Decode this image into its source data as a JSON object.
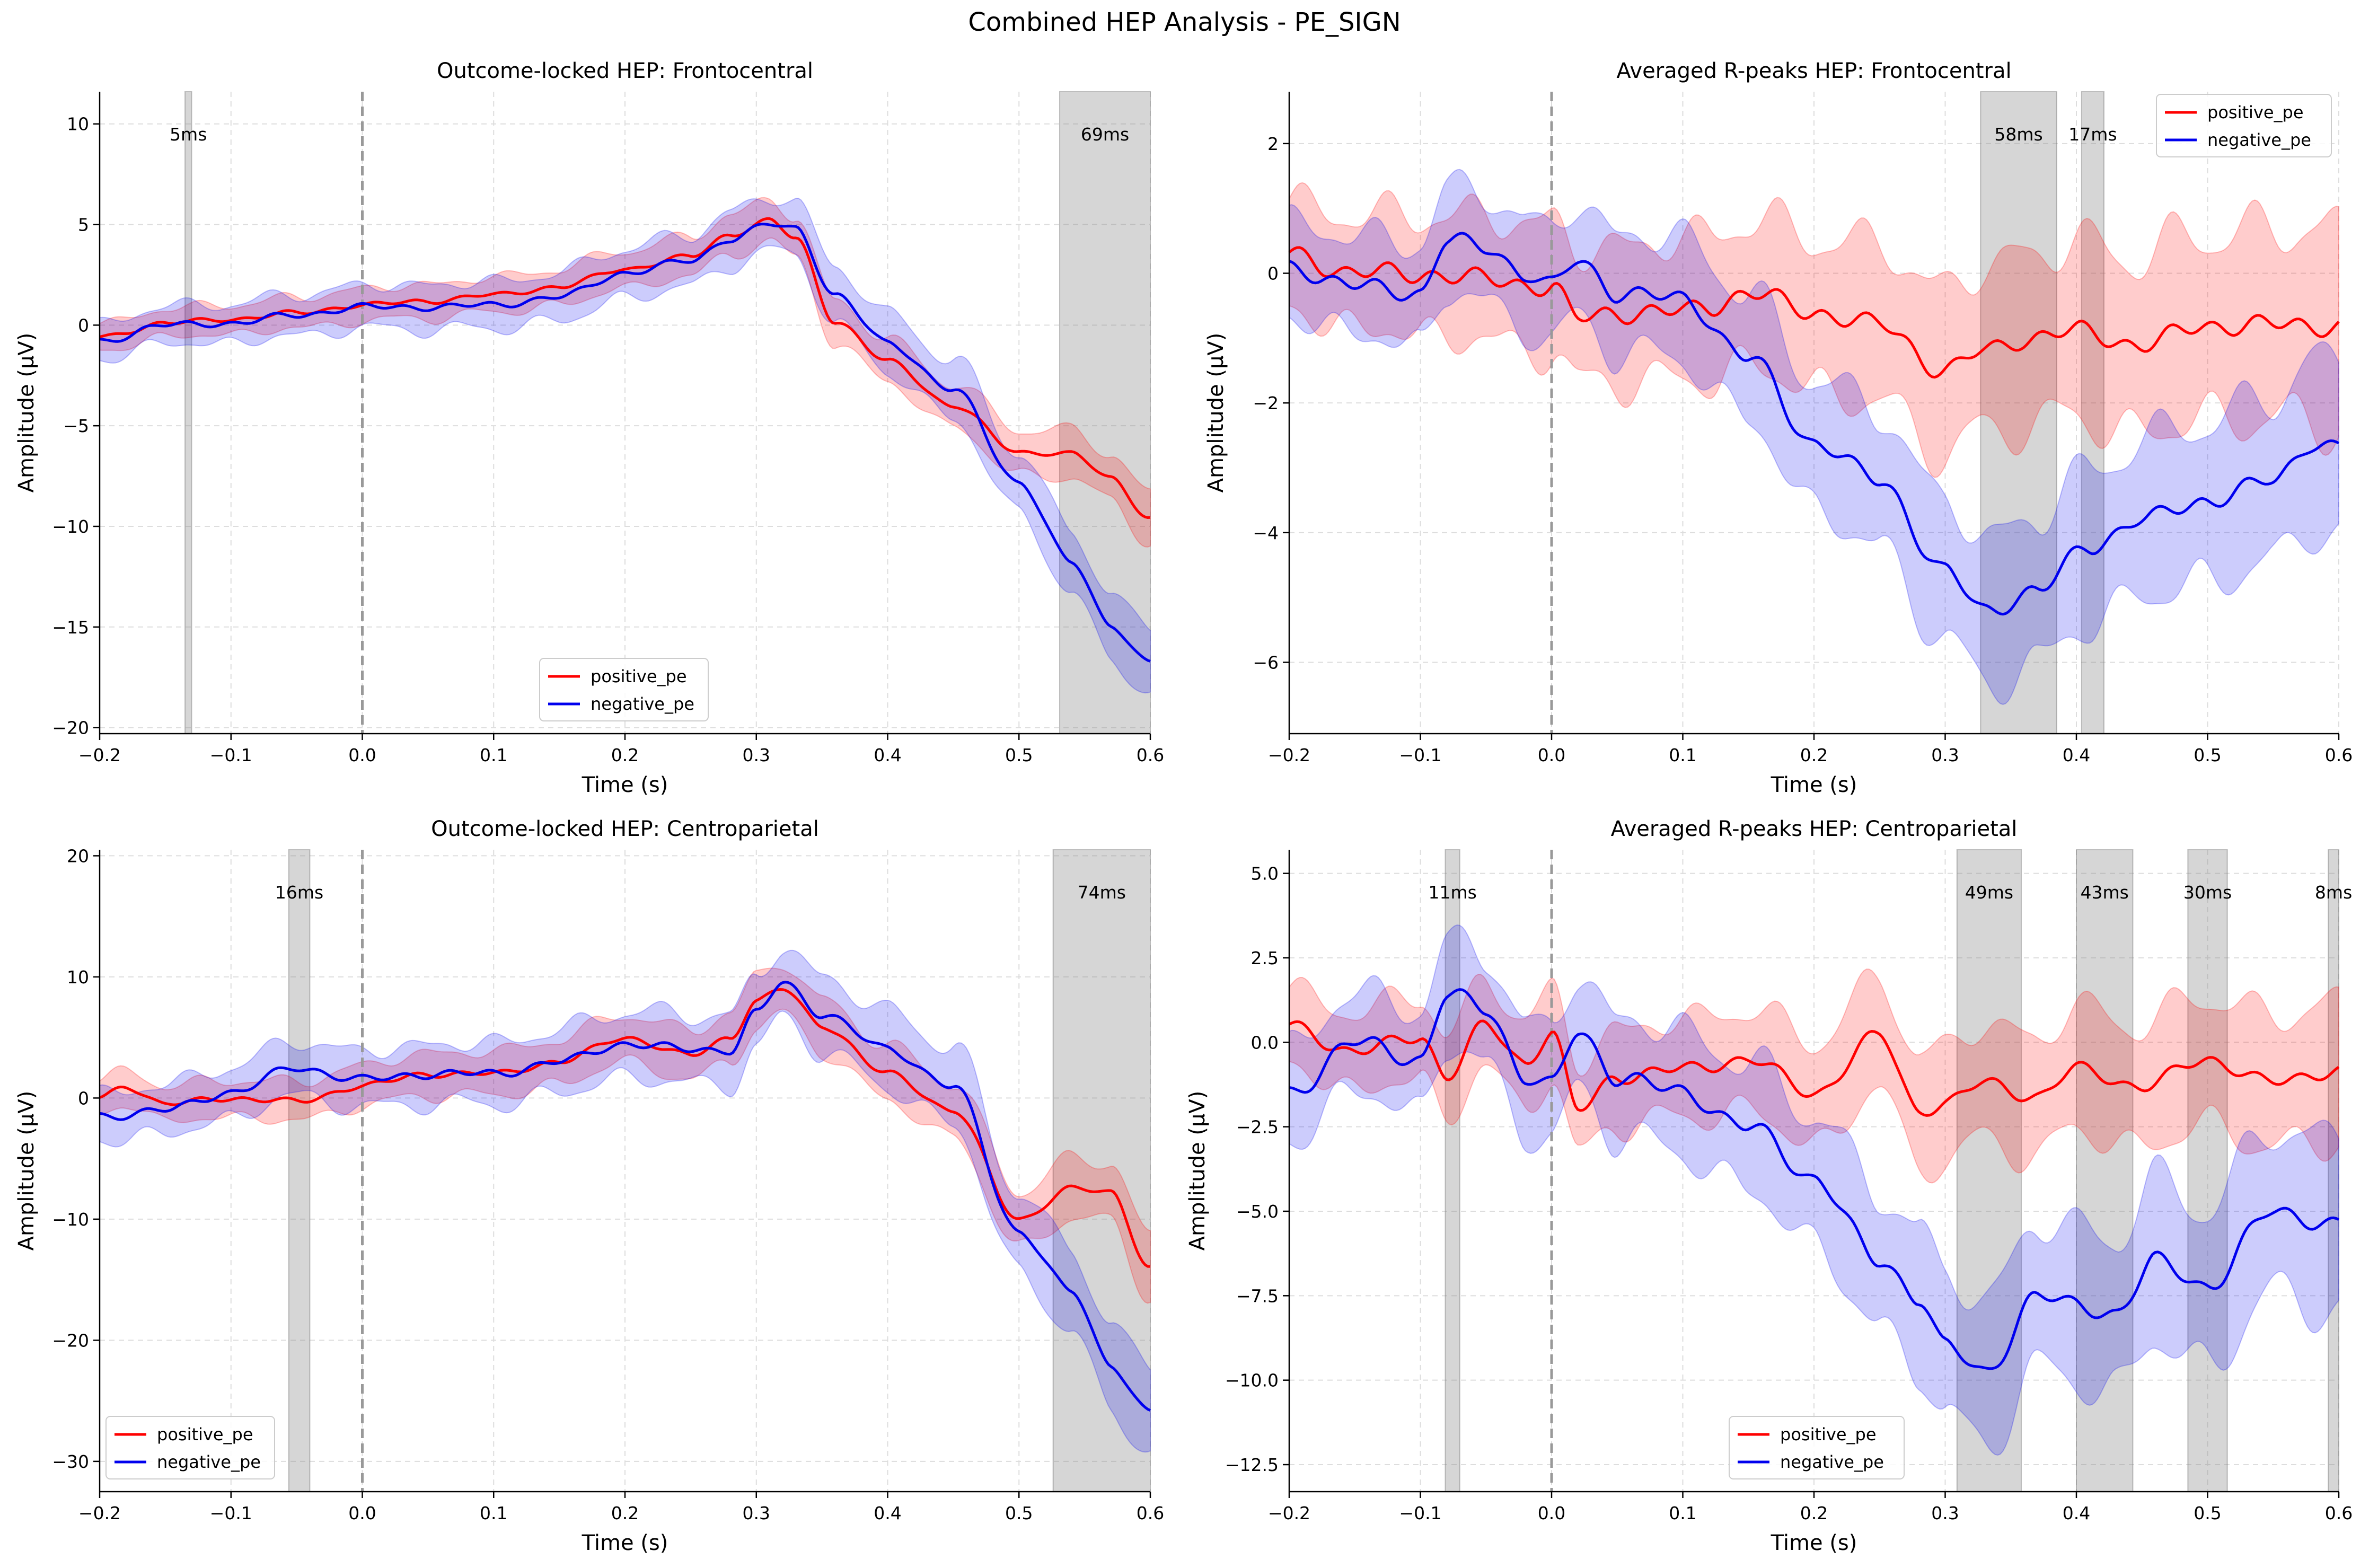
{
  "suptitle": "Combined HEP Analysis - PE_SIGN",
  "colors": {
    "positive": "#ff0000",
    "negative": "#0000ee",
    "sig": "#808080",
    "zero": "#999999"
  },
  "chart_data": [
    {
      "type": "line",
      "title": "Outcome-locked HEP: Frontocentral",
      "xlabel": "Time (s)",
      "ylabel": "Amplitude (μV)",
      "xlim": [
        -0.2,
        0.6
      ],
      "ylim": [
        -20.3,
        11.6
      ],
      "xticks": [
        -0.2,
        -0.1,
        0.0,
        0.1,
        0.2,
        0.3,
        0.4,
        0.5,
        0.6
      ],
      "xtick_labels": [
        "−0.2",
        "−0.1",
        "0.0",
        "0.1",
        "0.2",
        "0.3",
        "0.4",
        "0.5",
        "0.6"
      ],
      "yticks": [
        -20,
        -15,
        -10,
        -5,
        0,
        5,
        10
      ],
      "ytick_labels": [
        "−20",
        "−15",
        "−10",
        "−5",
        "0",
        "5",
        "10"
      ],
      "legend": "lower center",
      "grid": true,
      "sig_regions": [
        {
          "start": -0.135,
          "end": -0.13,
          "label": "5ms"
        },
        {
          "start": 0.531,
          "end": 0.6,
          "label": "69ms"
        }
      ],
      "series": [
        {
          "name": "positive_pe",
          "x": [
            -0.2,
            -0.15,
            -0.1,
            -0.05,
            0,
            0.05,
            0.1,
            0.15,
            0.2,
            0.25,
            0.28,
            0.31,
            0.33,
            0.36,
            0.4,
            0.45,
            0.5,
            0.54,
            0.57,
            0.6
          ],
          "y": [
            -0.6,
            0.1,
            0.3,
            0.6,
            1.0,
            1.2,
            1.5,
            1.9,
            2.8,
            3.4,
            4.5,
            5.2,
            4.3,
            0.2,
            -1.8,
            -4.0,
            -6.3,
            -6.4,
            -7.6,
            -9.6
          ],
          "band": 1.2
        },
        {
          "name": "negative_pe",
          "x": [
            -0.2,
            -0.15,
            -0.1,
            -0.05,
            0,
            0.05,
            0.1,
            0.15,
            0.2,
            0.25,
            0.28,
            0.31,
            0.33,
            0.36,
            0.4,
            0.45,
            0.5,
            0.54,
            0.57,
            0.6
          ],
          "y": [
            -0.8,
            0.0,
            0.1,
            0.5,
            0.9,
            0.9,
            1.0,
            1.4,
            2.6,
            3.2,
            4.3,
            5.0,
            4.8,
            1.5,
            -0.9,
            -3.2,
            -7.8,
            -11.8,
            -14.9,
            -16.8
          ],
          "band": 1.6
        }
      ]
    },
    {
      "type": "line",
      "title": "Averaged R-peaks HEP: Frontocentral",
      "xlabel": "Time (s)",
      "ylabel": "Amplitude (μV)",
      "xlim": [
        -0.2,
        0.6
      ],
      "ylim": [
        -7.1,
        2.8
      ],
      "xticks": [
        -0.2,
        -0.1,
        0.0,
        0.1,
        0.2,
        0.3,
        0.4,
        0.5,
        0.6
      ],
      "xtick_labels": [
        "−0.2",
        "−0.1",
        "0.0",
        "0.1",
        "0.2",
        "0.3",
        "0.4",
        "0.5",
        "0.6"
      ],
      "yticks": [
        -6,
        -4,
        -2,
        0,
        2
      ],
      "ytick_labels": [
        "−6",
        "−4",
        "−2",
        "0",
        "2"
      ],
      "legend": "upper right",
      "grid": true,
      "sig_regions": [
        {
          "start": 0.327,
          "end": 0.385,
          "label": "58ms"
        },
        {
          "start": 0.404,
          "end": 0.421,
          "label": "17ms"
        }
      ],
      "series": [
        {
          "name": "positive_pe",
          "x": [
            -0.2,
            -0.15,
            -0.1,
            -0.05,
            0,
            0.02,
            0.05,
            0.1,
            0.12,
            0.15,
            0.2,
            0.25,
            0.3,
            0.33,
            0.36,
            0.4,
            0.45,
            0.5,
            0.55,
            0.6
          ],
          "y": [
            0.3,
            0.0,
            0.0,
            -0.1,
            -0.2,
            -0.7,
            -0.6,
            -0.6,
            -0.5,
            -0.3,
            -0.6,
            -0.8,
            -1.5,
            -1.2,
            -1.0,
            -0.9,
            -1.1,
            -0.8,
            -0.8,
            -0.8
          ],
          "band": 1.5
        },
        {
          "name": "negative_pe",
          "x": [
            -0.2,
            -0.15,
            -0.1,
            -0.08,
            -0.05,
            -0.02,
            0,
            0.02,
            0.05,
            0.1,
            0.15,
            0.2,
            0.25,
            0.3,
            0.33,
            0.37,
            0.41,
            0.45,
            0.5,
            0.55,
            0.58,
            0.6
          ],
          "y": [
            0.1,
            -0.2,
            -0.3,
            0.5,
            0.4,
            0.0,
            -0.2,
            0.2,
            -0.3,
            -0.4,
            -1.3,
            -2.6,
            -3.2,
            -4.6,
            -5.2,
            -4.9,
            -4.2,
            -3.8,
            -3.5,
            -3.2,
            -2.6,
            -2.7
          ],
          "band": 1.3
        }
      ]
    },
    {
      "type": "line",
      "title": "Outcome-locked HEP: Centroparietal",
      "xlabel": "Time (s)",
      "ylabel": "Amplitude (μV)",
      "xlim": [
        -0.2,
        0.6
      ],
      "ylim": [
        -32.5,
        20.5
      ],
      "xticks": [
        -0.2,
        -0.1,
        0.0,
        0.1,
        0.2,
        0.3,
        0.4,
        0.5,
        0.6
      ],
      "xtick_labels": [
        "−0.2",
        "−0.1",
        "0.0",
        "0.1",
        "0.2",
        "0.3",
        "0.4",
        "0.5",
        "0.6"
      ],
      "yticks": [
        -30,
        -20,
        -10,
        0,
        10,
        20
      ],
      "ytick_labels": [
        "−30",
        "−20",
        "−10",
        "0",
        "10",
        "20"
      ],
      "legend": "lower left",
      "grid": true,
      "sig_regions": [
        {
          "start": -0.056,
          "end": -0.04,
          "label": "16ms"
        },
        {
          "start": 0.526,
          "end": 0.6,
          "label": "74ms"
        }
      ],
      "series": [
        {
          "name": "positive_pe",
          "x": [
            -0.2,
            -0.18,
            -0.15,
            -0.1,
            -0.05,
            0,
            0.05,
            0.1,
            0.15,
            0.2,
            0.25,
            0.28,
            0.3,
            0.32,
            0.35,
            0.4,
            0.45,
            0.5,
            0.54,
            0.57,
            0.6
          ],
          "y": [
            0.0,
            1.0,
            -0.5,
            0.0,
            -0.3,
            1.0,
            2.0,
            2.0,
            3.0,
            5.0,
            3.5,
            5.0,
            8.0,
            9.0,
            6.0,
            2.0,
            -1.0,
            -10.0,
            -7.5,
            -7.8,
            -14.0
          ],
          "band": 2.5
        },
        {
          "name": "negative_pe",
          "x": [
            -0.2,
            -0.15,
            -0.1,
            -0.05,
            0,
            0.05,
            0.1,
            0.15,
            0.2,
            0.25,
            0.28,
            0.3,
            0.32,
            0.35,
            0.4,
            0.45,
            0.5,
            0.54,
            0.57,
            0.6
          ],
          "y": [
            -1.5,
            -1.0,
            0.5,
            2.5,
            1.5,
            2.0,
            2.0,
            3.0,
            4.5,
            4.0,
            4.0,
            7.0,
            9.5,
            7.0,
            4.0,
            1.0,
            -11.0,
            -16.0,
            -22.0,
            -26.0
          ],
          "band": 3.5
        }
      ]
    },
    {
      "type": "line",
      "title": "Averaged R-peaks HEP: Centroparietal",
      "xlabel": "Time (s)",
      "ylabel": "Amplitude (μV)",
      "xlim": [
        -0.2,
        0.6
      ],
      "ylim": [
        -13.3,
        5.7
      ],
      "xticks": [
        -0.2,
        -0.1,
        0.0,
        0.1,
        0.2,
        0.3,
        0.4,
        0.5,
        0.6
      ],
      "xtick_labels": [
        "−0.2",
        "−0.1",
        "0.0",
        "0.1",
        "0.2",
        "0.3",
        "0.4",
        "0.5",
        "0.6"
      ],
      "yticks": [
        -12.5,
        -10.0,
        -7.5,
        -5.0,
        -2.5,
        0.0,
        2.5,
        5.0
      ],
      "ytick_labels": [
        "−12.5",
        "−10.0",
        "−7.5",
        "−5.0",
        "−2.5",
        "0.0",
        "2.5",
        "5.0"
      ],
      "legend": "lower center",
      "grid": true,
      "sig_regions": [
        {
          "start": -0.081,
          "end": -0.07,
          "label": "11ms"
        },
        {
          "start": 0.309,
          "end": 0.358,
          "label": "49ms"
        },
        {
          "start": 0.4,
          "end": 0.443,
          "label": "43ms"
        },
        {
          "start": 0.485,
          "end": 0.515,
          "label": "30ms"
        },
        {
          "start": 0.592,
          "end": 0.6,
          "label": "8ms"
        }
      ],
      "series": [
        {
          "name": "positive_pe",
          "x": [
            -0.2,
            -0.15,
            -0.1,
            -0.08,
            -0.05,
            -0.02,
            0,
            0.02,
            0.05,
            0.1,
            0.15,
            0.2,
            0.25,
            0.28,
            0.3,
            0.33,
            0.37,
            0.4,
            0.45,
            0.5,
            0.55,
            0.6
          ],
          "y": [
            0.5,
            -0.3,
            0.2,
            -1.0,
            0.5,
            -0.6,
            0.3,
            -2.0,
            -1.0,
            -0.8,
            -0.5,
            -1.5,
            0.2,
            -2.0,
            -1.8,
            -1.2,
            -1.6,
            -0.8,
            -1.3,
            -0.5,
            -1.2,
            -0.8
          ],
          "band": 2.0
        },
        {
          "name": "negative_pe",
          "x": [
            -0.2,
            -0.15,
            -0.1,
            -0.08,
            -0.05,
            -0.02,
            0,
            0.02,
            0.05,
            0.1,
            0.15,
            0.2,
            0.25,
            0.28,
            0.3,
            0.33,
            0.37,
            0.4,
            0.43,
            0.46,
            0.5,
            0.55,
            0.6
          ],
          "y": [
            -1.5,
            0.0,
            -0.5,
            1.4,
            1.0,
            -1.0,
            -1.3,
            0.3,
            -1.0,
            -1.5,
            -2.5,
            -4.0,
            -6.5,
            -7.5,
            -9.0,
            -9.8,
            -7.5,
            -7.8,
            -8.0,
            -6.5,
            -7.2,
            -5.0,
            -5.4
          ],
          "band": 2.5
        }
      ]
    }
  ]
}
